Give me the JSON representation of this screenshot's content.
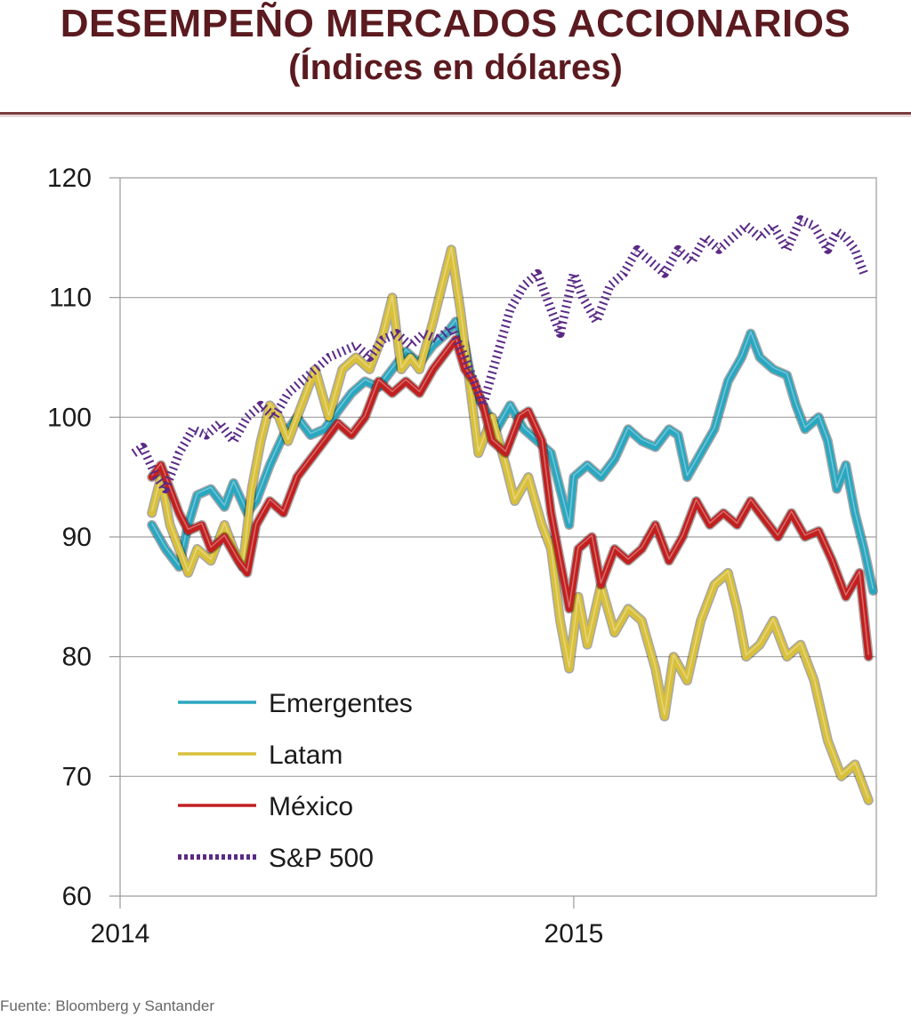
{
  "title_line1": "DESEMPEÑO MERCADOS ACCIONARIOS",
  "title_line2": "(Índices en dólares)",
  "source": "Fuente: Bloomberg y Santander",
  "chart_data": {
    "type": "line",
    "x_ticks": [
      "2014",
      "2015"
    ],
    "ylim": [
      60,
      120
    ],
    "y_ticks": [
      60,
      70,
      80,
      90,
      100,
      110,
      120
    ],
    "xlim": [
      2014.0,
      2015.667
    ],
    "grid": "horizontal",
    "legend_position": "bottom-left",
    "series": [
      {
        "name": "Emergentes",
        "color": "#2aa7c0",
        "dash": "solid",
        "points": [
          [
            2014.07,
            91
          ],
          [
            2014.1,
            89
          ],
          [
            2014.13,
            87.5
          ],
          [
            2014.15,
            91
          ],
          [
            2014.17,
            93.5
          ],
          [
            2014.2,
            94
          ],
          [
            2014.23,
            92.5
          ],
          [
            2014.25,
            94.5
          ],
          [
            2014.28,
            92
          ],
          [
            2014.3,
            93
          ],
          [
            2014.33,
            96
          ],
          [
            2014.36,
            98.5
          ],
          [
            2014.39,
            100
          ],
          [
            2014.42,
            98.5
          ],
          [
            2014.45,
            99
          ],
          [
            2014.48,
            100.5
          ],
          [
            2014.51,
            102
          ],
          [
            2014.54,
            103
          ],
          [
            2014.57,
            102.5
          ],
          [
            2014.6,
            104
          ],
          [
            2014.63,
            105.5
          ],
          [
            2014.66,
            104.5
          ],
          [
            2014.69,
            106
          ],
          [
            2014.72,
            107
          ],
          [
            2014.74,
            108
          ],
          [
            2014.76,
            106
          ],
          [
            2014.78,
            102
          ],
          [
            2014.8,
            101
          ],
          [
            2014.83,
            99
          ],
          [
            2014.86,
            101
          ],
          [
            2014.89,
            99
          ],
          [
            2014.92,
            98
          ],
          [
            2014.95,
            97
          ],
          [
            2014.97,
            94
          ],
          [
            2014.99,
            91
          ],
          [
            2015.0,
            95
          ],
          [
            2015.03,
            96
          ],
          [
            2015.06,
            95
          ],
          [
            2015.09,
            96.5
          ],
          [
            2015.12,
            99
          ],
          [
            2015.15,
            98
          ],
          [
            2015.18,
            97.5
          ],
          [
            2015.21,
            99
          ],
          [
            2015.23,
            98.5
          ],
          [
            2015.25,
            95
          ],
          [
            2015.28,
            97
          ],
          [
            2015.31,
            99
          ],
          [
            2015.34,
            103
          ],
          [
            2015.37,
            105
          ],
          [
            2015.39,
            107
          ],
          [
            2015.41,
            105
          ],
          [
            2015.44,
            104
          ],
          [
            2015.47,
            103.5
          ],
          [
            2015.49,
            101
          ],
          [
            2015.51,
            99
          ],
          [
            2015.54,
            100
          ],
          [
            2015.56,
            98
          ],
          [
            2015.58,
            94
          ],
          [
            2015.6,
            96
          ],
          [
            2015.62,
            92
          ],
          [
            2015.64,
            89
          ],
          [
            2015.66,
            85.5
          ]
        ]
      },
      {
        "name": "Latam",
        "color": "#d9c03a",
        "dash": "solid",
        "points": [
          [
            2014.07,
            92
          ],
          [
            2014.09,
            95
          ],
          [
            2014.11,
            91
          ],
          [
            2014.13,
            89
          ],
          [
            2014.15,
            87
          ],
          [
            2014.17,
            89
          ],
          [
            2014.2,
            88
          ],
          [
            2014.23,
            91
          ],
          [
            2014.25,
            89
          ],
          [
            2014.27,
            87.5
          ],
          [
            2014.29,
            94
          ],
          [
            2014.31,
            98
          ],
          [
            2014.33,
            101
          ],
          [
            2014.35,
            100
          ],
          [
            2014.37,
            98
          ],
          [
            2014.4,
            101
          ],
          [
            2014.43,
            104
          ],
          [
            2014.46,
            100
          ],
          [
            2014.49,
            104
          ],
          [
            2014.52,
            105
          ],
          [
            2014.55,
            104
          ],
          [
            2014.58,
            107
          ],
          [
            2014.6,
            110
          ],
          [
            2014.62,
            104
          ],
          [
            2014.64,
            105
          ],
          [
            2014.66,
            104
          ],
          [
            2014.69,
            108
          ],
          [
            2014.71,
            111
          ],
          [
            2014.73,
            114
          ],
          [
            2014.75,
            109
          ],
          [
            2014.77,
            103
          ],
          [
            2014.79,
            97
          ],
          [
            2014.82,
            100
          ],
          [
            2014.85,
            96
          ],
          [
            2014.87,
            93
          ],
          [
            2014.9,
            95
          ],
          [
            2014.93,
            91
          ],
          [
            2014.95,
            89
          ],
          [
            2014.97,
            83
          ],
          [
            2014.99,
            79
          ],
          [
            2015.01,
            85
          ],
          [
            2015.03,
            81
          ],
          [
            2015.06,
            86
          ],
          [
            2015.09,
            82
          ],
          [
            2015.12,
            84
          ],
          [
            2015.15,
            83
          ],
          [
            2015.18,
            79
          ],
          [
            2015.2,
            75
          ],
          [
            2015.22,
            80
          ],
          [
            2015.25,
            78
          ],
          [
            2015.28,
            83
          ],
          [
            2015.31,
            86
          ],
          [
            2015.34,
            87
          ],
          [
            2015.36,
            84
          ],
          [
            2015.38,
            80
          ],
          [
            2015.41,
            81
          ],
          [
            2015.44,
            83
          ],
          [
            2015.47,
            80
          ],
          [
            2015.5,
            81
          ],
          [
            2015.53,
            78
          ],
          [
            2015.56,
            73
          ],
          [
            2015.59,
            70
          ],
          [
            2015.62,
            71
          ],
          [
            2015.65,
            68
          ]
        ]
      },
      {
        "name": "México",
        "color": "#c22020",
        "dash": "solid",
        "points": [
          [
            2014.07,
            95
          ],
          [
            2014.09,
            96
          ],
          [
            2014.11,
            94
          ],
          [
            2014.13,
            92
          ],
          [
            2014.15,
            90.5
          ],
          [
            2014.18,
            91
          ],
          [
            2014.2,
            89
          ],
          [
            2014.23,
            90
          ],
          [
            2014.26,
            88
          ],
          [
            2014.28,
            87
          ],
          [
            2014.3,
            91
          ],
          [
            2014.33,
            93
          ],
          [
            2014.36,
            92
          ],
          [
            2014.39,
            95
          ],
          [
            2014.42,
            96.5
          ],
          [
            2014.45,
            98
          ],
          [
            2014.48,
            99.5
          ],
          [
            2014.51,
            98.5
          ],
          [
            2014.54,
            100
          ],
          [
            2014.57,
            103
          ],
          [
            2014.6,
            102
          ],
          [
            2014.63,
            103
          ],
          [
            2014.66,
            102
          ],
          [
            2014.69,
            104
          ],
          [
            2014.72,
            105.5
          ],
          [
            2014.74,
            106.5
          ],
          [
            2014.76,
            104
          ],
          [
            2014.78,
            103
          ],
          [
            2014.8,
            101
          ],
          [
            2014.82,
            98
          ],
          [
            2014.85,
            97
          ],
          [
            2014.88,
            100
          ],
          [
            2014.9,
            100.5
          ],
          [
            2014.93,
            98
          ],
          [
            2014.95,
            92
          ],
          [
            2014.97,
            88
          ],
          [
            2014.99,
            84
          ],
          [
            2015.01,
            89
          ],
          [
            2015.04,
            90
          ],
          [
            2015.06,
            86
          ],
          [
            2015.09,
            89
          ],
          [
            2015.12,
            88
          ],
          [
            2015.15,
            89
          ],
          [
            2015.18,
            91
          ],
          [
            2015.21,
            88
          ],
          [
            2015.24,
            90
          ],
          [
            2015.27,
            93
          ],
          [
            2015.3,
            91
          ],
          [
            2015.33,
            92
          ],
          [
            2015.36,
            91
          ],
          [
            2015.39,
            93
          ],
          [
            2015.42,
            91.5
          ],
          [
            2015.45,
            90
          ],
          [
            2015.48,
            92
          ],
          [
            2015.51,
            90
          ],
          [
            2015.54,
            90.5
          ],
          [
            2015.57,
            88
          ],
          [
            2015.6,
            85
          ],
          [
            2015.63,
            87
          ],
          [
            2015.65,
            80
          ]
        ]
      },
      {
        "name": "S&P 500",
        "color": "#5a2a86",
        "dash": "dashed",
        "points": [
          [
            2014.03,
            97
          ],
          [
            2014.05,
            97.5
          ],
          [
            2014.08,
            95
          ],
          [
            2014.1,
            94
          ],
          [
            2014.13,
            97
          ],
          [
            2014.16,
            99
          ],
          [
            2014.19,
            98.5
          ],
          [
            2014.22,
            99.5
          ],
          [
            2014.25,
            98
          ],
          [
            2014.28,
            100
          ],
          [
            2014.31,
            101
          ],
          [
            2014.34,
            100
          ],
          [
            2014.37,
            102
          ],
          [
            2014.4,
            103
          ],
          [
            2014.43,
            104
          ],
          [
            2014.46,
            105
          ],
          [
            2014.49,
            105.5
          ],
          [
            2014.52,
            106
          ],
          [
            2014.55,
            105
          ],
          [
            2014.58,
            106.5
          ],
          [
            2014.61,
            107
          ],
          [
            2014.64,
            106
          ],
          [
            2014.67,
            107
          ],
          [
            2014.7,
            106.5
          ],
          [
            2014.73,
            107.5
          ],
          [
            2014.76,
            105
          ],
          [
            2014.78,
            103
          ],
          [
            2014.8,
            101
          ],
          [
            2014.83,
            105
          ],
          [
            2014.86,
            109
          ],
          [
            2014.89,
            111
          ],
          [
            2014.92,
            112
          ],
          [
            2014.95,
            109
          ],
          [
            2014.97,
            107
          ],
          [
            2015.0,
            112
          ],
          [
            2015.02,
            110
          ],
          [
            2015.05,
            108
          ],
          [
            2015.08,
            111
          ],
          [
            2015.11,
            112
          ],
          [
            2015.14,
            114
          ],
          [
            2015.17,
            113
          ],
          [
            2015.2,
            112
          ],
          [
            2015.23,
            114
          ],
          [
            2015.26,
            113
          ],
          [
            2015.29,
            115
          ],
          [
            2015.32,
            114
          ],
          [
            2015.35,
            115
          ],
          [
            2015.38,
            116
          ],
          [
            2015.41,
            115
          ],
          [
            2015.44,
            116
          ],
          [
            2015.47,
            114
          ],
          [
            2015.5,
            116.5
          ],
          [
            2015.53,
            116
          ],
          [
            2015.56,
            114
          ],
          [
            2015.58,
            115.5
          ],
          [
            2015.6,
            115
          ],
          [
            2015.62,
            114
          ],
          [
            2015.64,
            112
          ]
        ]
      }
    ]
  }
}
